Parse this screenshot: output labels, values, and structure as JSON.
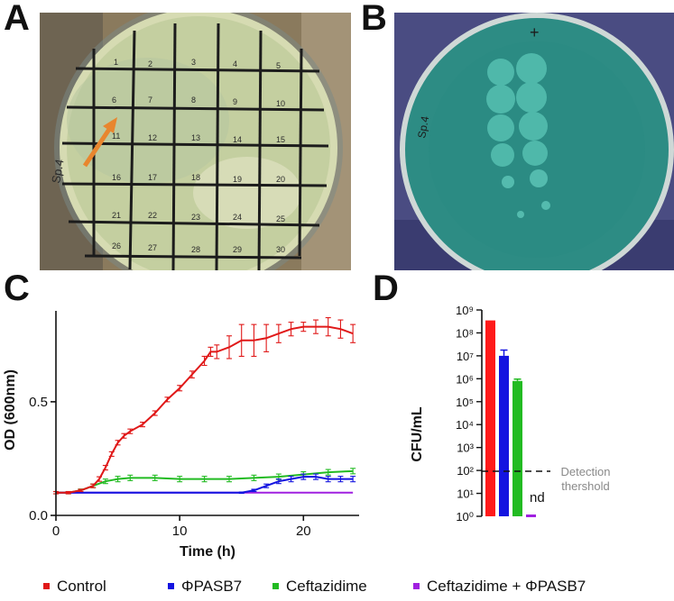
{
  "panels": {
    "a": "A",
    "b": "B",
    "c": "C",
    "d": "D"
  },
  "photo_a": {
    "plate_labels": [
      "1",
      "2",
      "3",
      "4",
      "5",
      "6",
      "7",
      "8",
      "9",
      "10",
      "11",
      "12",
      "13",
      "14",
      "15",
      "16",
      "17",
      "18",
      "19",
      "20",
      "21",
      "22",
      "23",
      "24",
      "25",
      "26",
      "27",
      "28",
      "29",
      "30"
    ],
    "side_text": "Sp.4",
    "colors": {
      "agar": "#c9d2a8",
      "grid": "#1c1c1c",
      "arrow": "#e8862e",
      "background": "#9a8a6a"
    }
  },
  "photo_b": {
    "mark": "+",
    "side_text": "Sp.4",
    "colors": {
      "agar": "#2d8c84",
      "plaque": "#4fb8aa",
      "glove": "#3d3f7a"
    }
  },
  "chart_data": [
    {
      "type": "line",
      "panel": "C",
      "xlabel": "Time (h)",
      "ylabel": "OD (600nm)",
      "xlim": [
        0,
        24.5
      ],
      "ylim": [
        0,
        0.9
      ],
      "x_ticks": [
        0,
        10,
        20
      ],
      "y_ticks": [
        0.0,
        0.5
      ],
      "x_tick_labels": [
        "0",
        "10",
        "20"
      ],
      "y_tick_labels": [
        "0.0",
        "0.5"
      ],
      "grid": false,
      "error_bars": true,
      "series": [
        {
          "name": "Control",
          "color": "#e01818",
          "x": [
            0,
            1,
            2,
            3,
            3.5,
            4,
            4.5,
            5,
            5.5,
            6,
            7,
            8,
            9,
            10,
            11,
            12,
            12.5,
            13,
            14,
            15,
            16,
            17,
            18,
            19,
            20,
            21,
            22,
            23,
            24
          ],
          "y": [
            0.1,
            0.1,
            0.11,
            0.13,
            0.16,
            0.21,
            0.27,
            0.32,
            0.35,
            0.37,
            0.4,
            0.45,
            0.51,
            0.56,
            0.62,
            0.68,
            0.72,
            0.72,
            0.74,
            0.77,
            0.77,
            0.78,
            0.8,
            0.82,
            0.83,
            0.83,
            0.83,
            0.82,
            0.8
          ],
          "err": [
            0.005,
            0.005,
            0.005,
            0.008,
            0.01,
            0.01,
            0.01,
            0.01,
            0.01,
            0.01,
            0.01,
            0.01,
            0.01,
            0.012,
            0.015,
            0.02,
            0.02,
            0.03,
            0.05,
            0.07,
            0.07,
            0.06,
            0.04,
            0.03,
            0.02,
            0.03,
            0.04,
            0.04,
            0.04
          ]
        },
        {
          "name": "ΦPASB7",
          "color": "#1414e0",
          "x": [
            0,
            2,
            4,
            6,
            8,
            10,
            12,
            14,
            15,
            16,
            17,
            18,
            19,
            20,
            21,
            22,
            23,
            24
          ],
          "y": [
            0.1,
            0.1,
            0.1,
            0.1,
            0.1,
            0.1,
            0.1,
            0.1,
            0.1,
            0.11,
            0.13,
            0.15,
            0.16,
            0.17,
            0.17,
            0.16,
            0.16,
            0.16
          ],
          "err": [
            0,
            0,
            0,
            0,
            0,
            0,
            0,
            0,
            0.003,
            0.005,
            0.008,
            0.01,
            0.012,
            0.012,
            0.012,
            0.012,
            0.012,
            0.012
          ]
        },
        {
          "name": "Ceftazidime",
          "color": "#22bb22",
          "x": [
            0,
            1,
            2,
            3,
            4,
            5,
            6,
            8,
            10,
            12,
            14,
            16,
            18,
            20,
            22,
            24
          ],
          "y": [
            0.1,
            0.1,
            0.11,
            0.13,
            0.15,
            0.16,
            0.165,
            0.165,
            0.16,
            0.16,
            0.16,
            0.165,
            0.17,
            0.18,
            0.19,
            0.195
          ],
          "err": [
            0.005,
            0.005,
            0.006,
            0.008,
            0.01,
            0.012,
            0.012,
            0.012,
            0.012,
            0.012,
            0.012,
            0.012,
            0.012,
            0.012,
            0.012,
            0.012
          ]
        },
        {
          "name": "Ceftazidime + ΦPASB7",
          "color": "#a020e0",
          "x": [
            0,
            4,
            8,
            12,
            16,
            20,
            24
          ],
          "y": [
            0.1,
            0.1,
            0.1,
            0.1,
            0.1,
            0.1,
            0.1
          ],
          "err": [
            0,
            0,
            0,
            0,
            0,
            0,
            0
          ]
        }
      ]
    },
    {
      "type": "bar",
      "panel": "D",
      "ylabel": "CFU/mL",
      "y_scale": "log",
      "ylim": [
        1,
        1000000000
      ],
      "y_tick_labels": [
        "10⁰",
        "10¹",
        "10²",
        "10³",
        "10⁴",
        "10⁵",
        "10⁶",
        "10⁷",
        "10⁸",
        "10⁹"
      ],
      "categories": [
        "Control",
        "ΦPASB7",
        "Ceftazidime",
        "Ceftazidime + ΦPASB7"
      ],
      "values": [
        350000000,
        10000000,
        800000,
        null
      ],
      "errors_log10": [
        0,
        0.25,
        0.08,
        0
      ],
      "colors": [
        "#ff1a1a",
        "#1414e0",
        "#22bb22",
        "#a020e0"
      ],
      "detection_limit": 100,
      "detection_label": [
        "Detection",
        "thershold"
      ],
      "not_detected_label": "nd"
    }
  ]
}
